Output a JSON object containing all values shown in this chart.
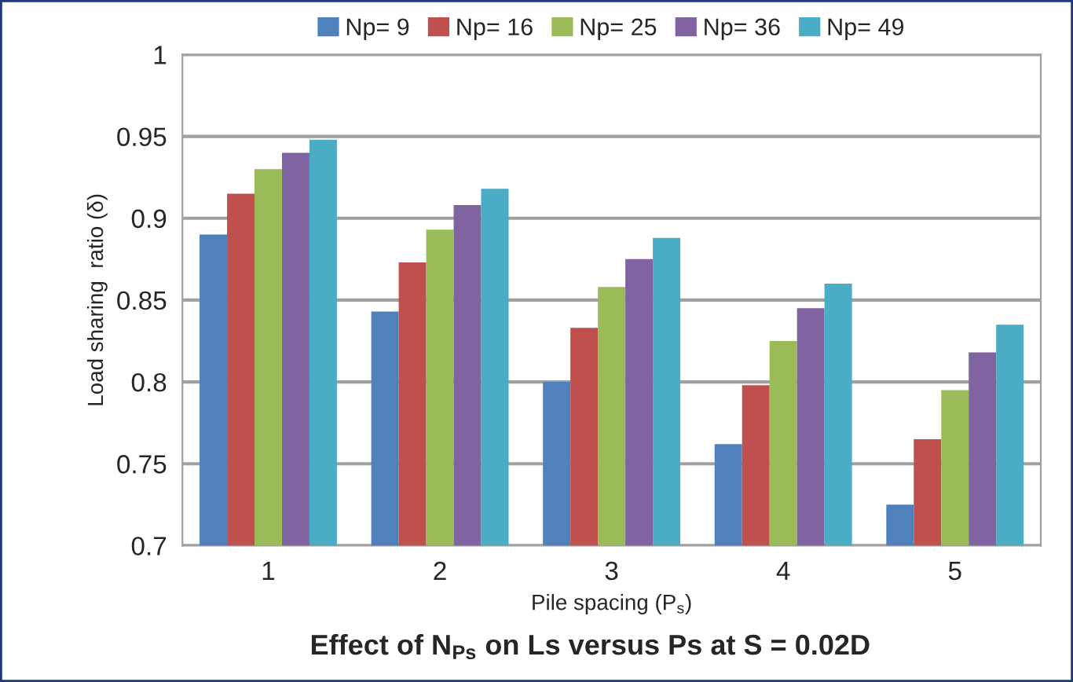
{
  "chart_data": {
    "type": "bar",
    "title": "Effect of N$_{Ps}$ on Ls versus Ps at S = 0.02D",
    "xlabel": "Pile spacing (P$_{s}$)",
    "ylabel": "Load sharing  ratio (δ)",
    "categories": [
      "1",
      "2",
      "3",
      "4",
      "5"
    ],
    "series": [
      {
        "name": "Np= 9",
        "color": "#4f81bd",
        "values": [
          0.89,
          0.843,
          0.8,
          0.762,
          0.725
        ]
      },
      {
        "name": "Np= 16",
        "color": "#c0504d",
        "values": [
          0.915,
          0.873,
          0.833,
          0.798,
          0.765
        ]
      },
      {
        "name": "Np= 25",
        "color": "#9bbb59",
        "values": [
          0.93,
          0.893,
          0.858,
          0.825,
          0.795
        ]
      },
      {
        "name": "Np= 36",
        "color": "#8064a2",
        "values": [
          0.94,
          0.908,
          0.875,
          0.845,
          0.818
        ]
      },
      {
        "name": "Np= 49",
        "color": "#4bacc6",
        "values": [
          0.948,
          0.918,
          0.888,
          0.86,
          0.835
        ]
      }
    ],
    "ylim": [
      0.7,
      1
    ],
    "yticks": [
      0.7,
      0.75,
      0.8,
      0.85,
      0.9,
      0.95,
      1
    ],
    "grid": "y",
    "legend": "top"
  }
}
